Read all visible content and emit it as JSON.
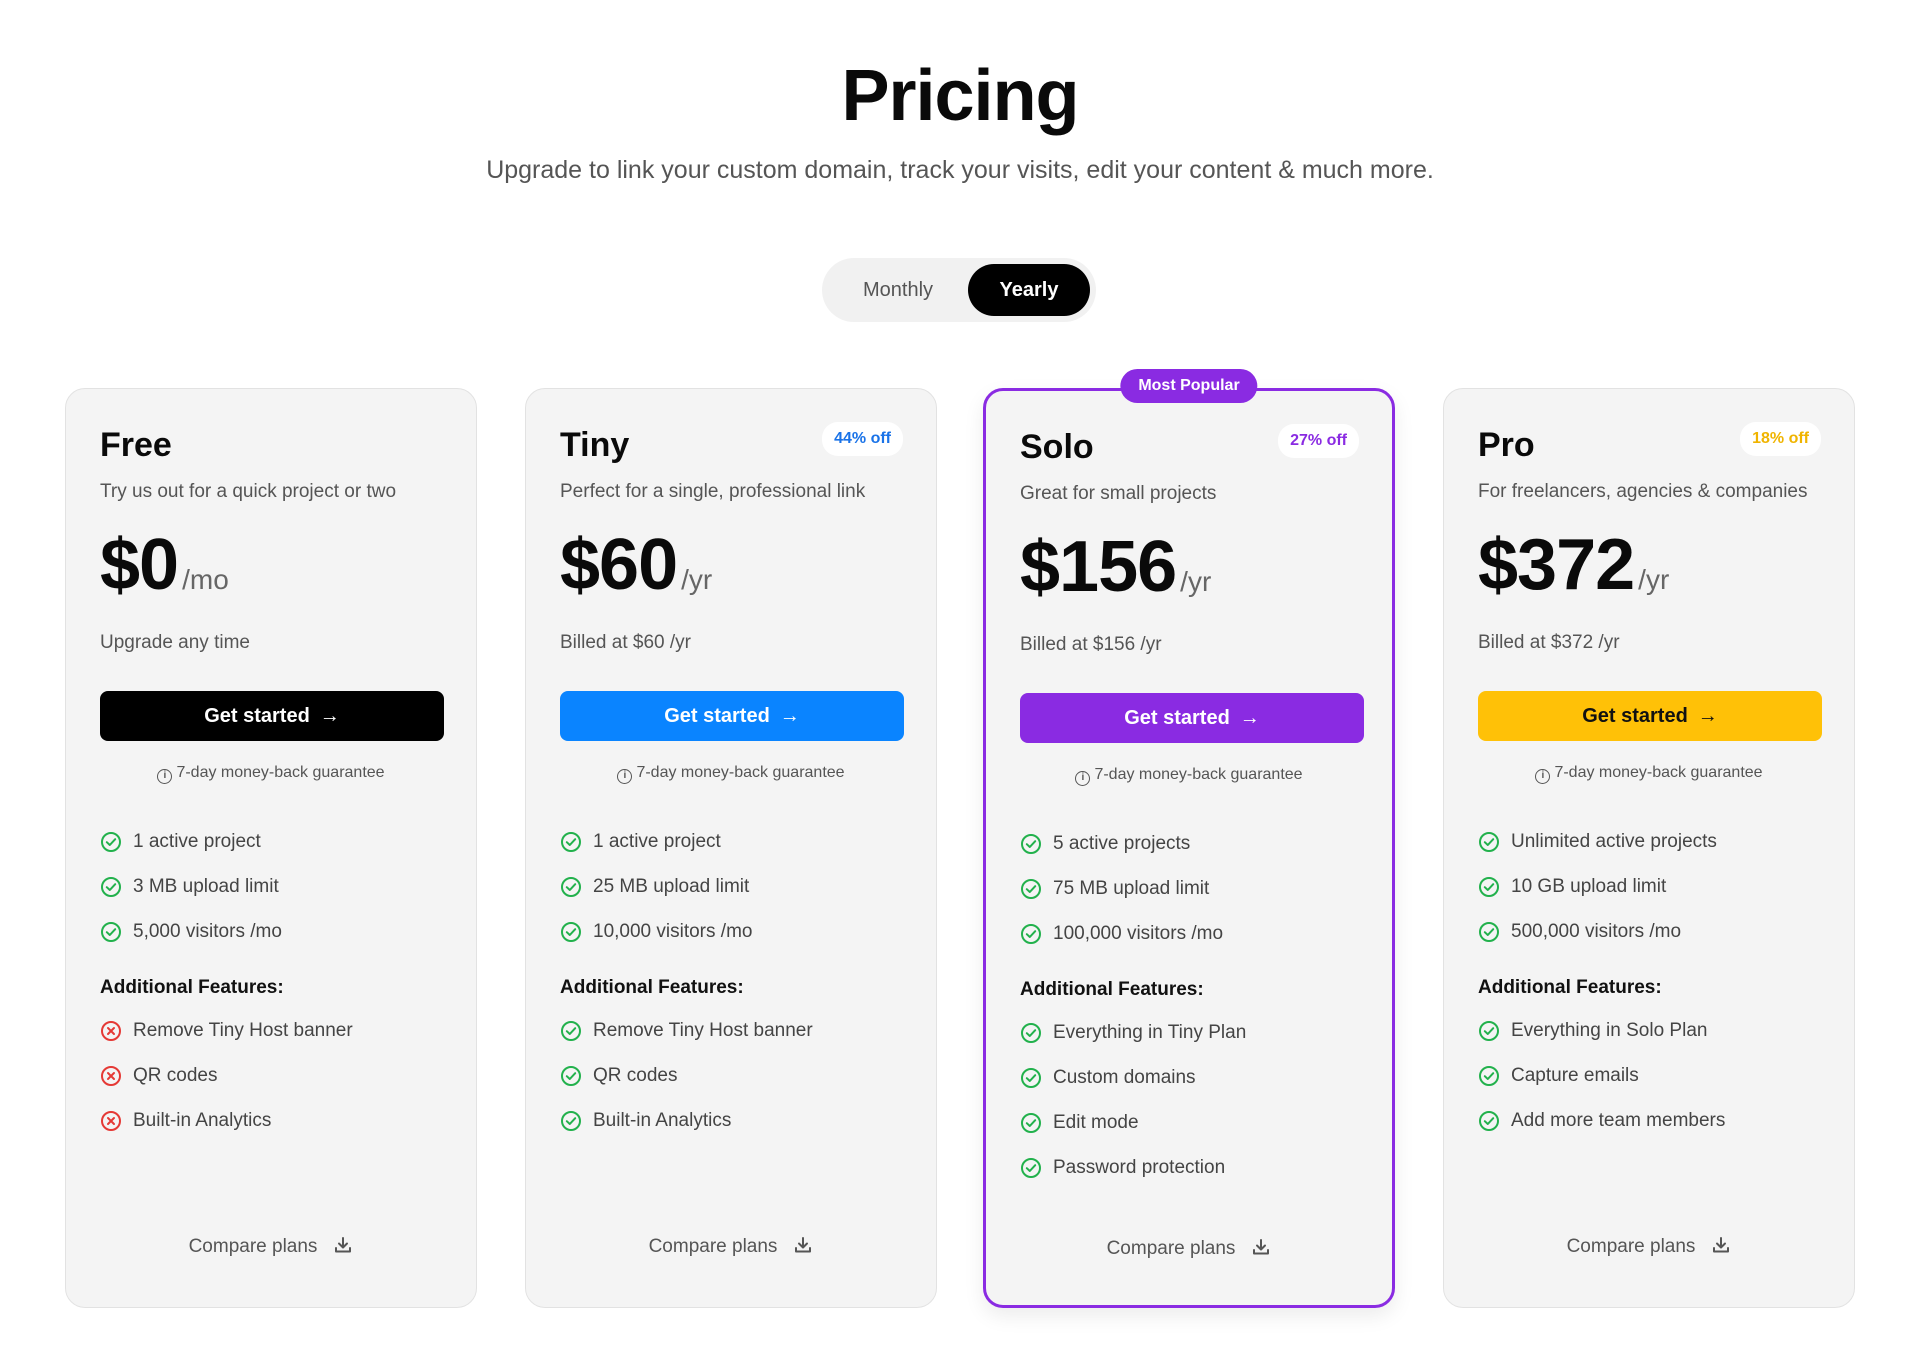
{
  "header": {
    "title": "Pricing",
    "subtitle": "Upgrade to link your custom domain, track your visits, edit your content & much more."
  },
  "billing_toggle": {
    "monthly_label": "Monthly",
    "yearly_label": "Yearly",
    "selected": "Yearly"
  },
  "plans": [
    {
      "name": "Free",
      "discount": "",
      "description": "Try us out for a quick project or two",
      "amount": "$0",
      "period": "/mo",
      "billed": "Upgrade any time",
      "cta_label": "Get started",
      "cta_color": "#000000",
      "guarantee": "7-day money-back guarantee",
      "features": [
        "1 active project",
        "3 MB upload limit",
        "5,000 visitors /mo"
      ],
      "additional_label": "Additional Features:",
      "additional": [
        {
          "label": "Remove Tiny Host banner",
          "included": false
        },
        {
          "label": "QR codes",
          "included": false
        },
        {
          "label": "Built-in Analytics",
          "included": false
        }
      ],
      "compare_label": "Compare plans"
    },
    {
      "name": "Tiny",
      "discount": "44% off",
      "discount_color": "#1a73e8",
      "description": "Perfect for a single, professional link",
      "amount": "$60",
      "period": "/yr",
      "billed": "Billed at $60 /yr",
      "cta_label": "Get started",
      "cta_color": "#0a84ff",
      "guarantee": "7-day money-back guarantee",
      "features": [
        "1 active project",
        "25 MB upload limit",
        "10,000 visitors /mo"
      ],
      "additional_label": "Additional Features:",
      "additional": [
        {
          "label": "Remove Tiny Host banner",
          "included": true
        },
        {
          "label": "QR codes",
          "included": true
        },
        {
          "label": "Built-in Analytics",
          "included": true
        }
      ],
      "compare_label": "Compare plans"
    },
    {
      "name": "Solo",
      "badge": "Most Popular",
      "discount": "27% off",
      "discount_color": "#8a2be2",
      "description": "Great for small projects",
      "amount": "$156",
      "period": "/yr",
      "billed": "Billed at $156 /yr",
      "cta_label": "Get started",
      "cta_color": "#8a2be2",
      "guarantee": "7-day money-back guarantee",
      "features": [
        "5 active projects",
        "75 MB upload limit",
        "100,000 visitors /mo"
      ],
      "additional_label": "Additional Features:",
      "additional": [
        {
          "label": "Everything in Tiny Plan",
          "included": true
        },
        {
          "label": "Custom domains",
          "included": true
        },
        {
          "label": "Edit mode",
          "included": true
        },
        {
          "label": "Password protection",
          "included": true
        }
      ],
      "compare_label": "Compare plans"
    },
    {
      "name": "Pro",
      "discount": "18% off",
      "discount_color": "#f0b400",
      "description": "For freelancers, agencies & companies",
      "amount": "$372",
      "period": "/yr",
      "billed": "Billed at $372 /yr",
      "cta_label": "Get started",
      "cta_color": "#ffc107",
      "cta_text_color": "#111111",
      "guarantee": "7-day money-back guarantee",
      "features": [
        "Unlimited active projects",
        "10 GB upload limit",
        "500,000 visitors /mo"
      ],
      "additional_label": "Additional Features:",
      "additional": [
        {
          "label": "Everything in Solo Plan",
          "included": true
        },
        {
          "label": "Capture emails",
          "included": true
        },
        {
          "label": "Add more team members",
          "included": true
        }
      ],
      "compare_label": "Compare plans"
    }
  ],
  "colors": {
    "check": "#22b14c",
    "cross": "#e53935"
  },
  "icons": {
    "included": "check-circle-icon",
    "excluded": "x-circle-icon",
    "cta": "arrow-right-icon",
    "guarantee": "info-icon",
    "compare": "download-icon"
  }
}
